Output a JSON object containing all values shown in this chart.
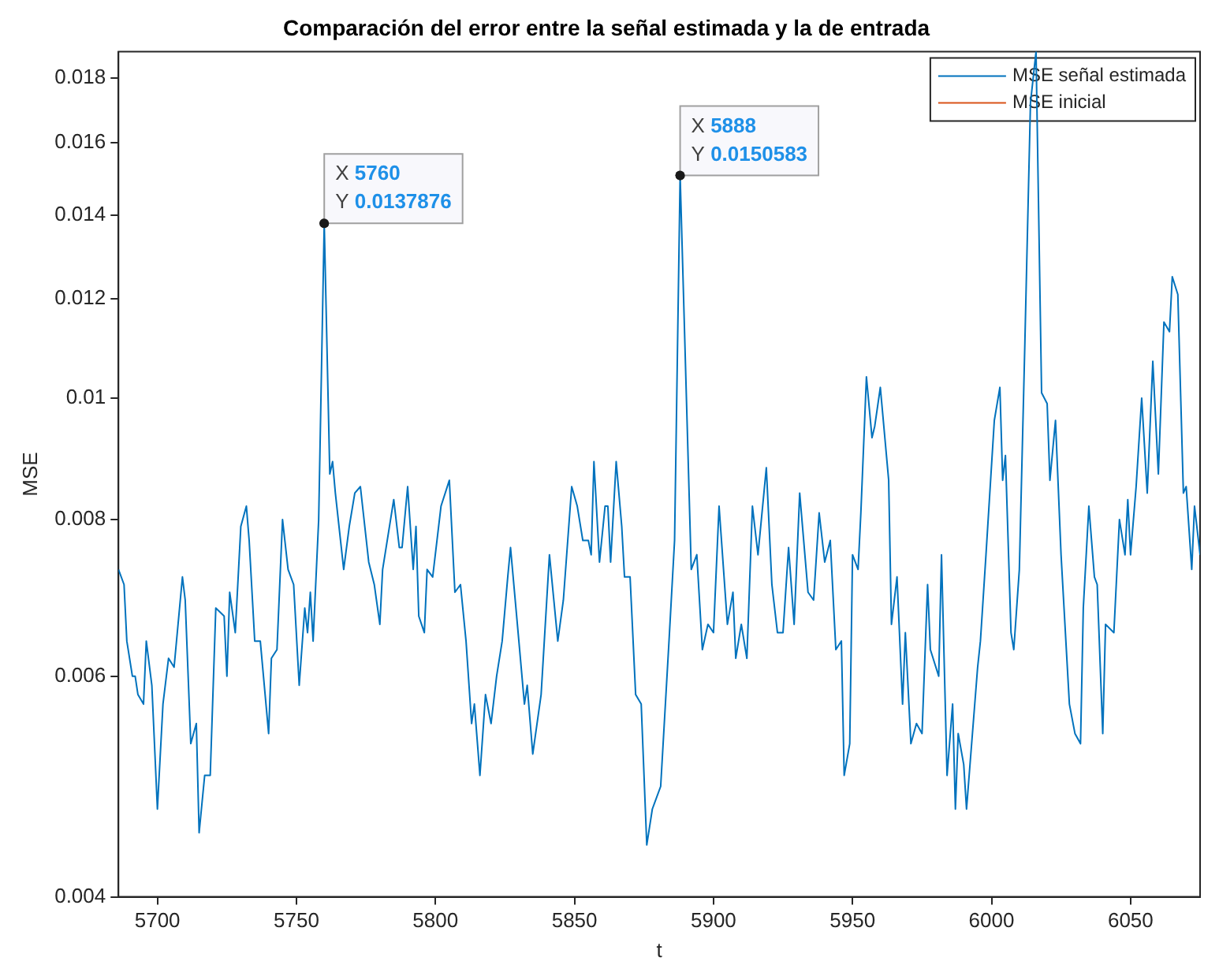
{
  "chart_data": {
    "type": "line",
    "title": "Comparación del error entre la señal estimada y la de entrada",
    "xlabel": "t",
    "ylabel": "MSE",
    "log": "y",
    "xlim": [
      5686,
      6075
    ],
    "xticks": [
      5700,
      5750,
      5800,
      5850,
      5900,
      5950,
      6000,
      6050
    ],
    "ylim": [
      0.004,
      0.0189
    ],
    "yticks": [
      0.004,
      0.006,
      0.008,
      0.01,
      0.012,
      0.014,
      0.016,
      0.018
    ],
    "legend": "top right",
    "marker": "none",
    "series": [
      {
        "name": "MSE señal estimada",
        "color": "#0072bd",
        "x": [
          5686,
          5688,
          5689,
          5691,
          5692,
          5693,
          5695,
          5696,
          5698,
          5700,
          5702,
          5704,
          5706,
          5709,
          5710,
          5712,
          5714,
          5715,
          5717,
          5719,
          5721,
          5724,
          5725,
          5726,
          5728,
          5730,
          5732,
          5733,
          5735,
          5737,
          5740,
          5741,
          5743,
          5745,
          5747,
          5749,
          5751,
          5753,
          5754,
          5755,
          5756,
          5758,
          5760,
          5762,
          5763,
          5764,
          5767,
          5769,
          5771,
          5773,
          5776,
          5778,
          5780,
          5781,
          5785,
          5787,
          5788,
          5790,
          5792,
          5793,
          5794,
          5796,
          5797,
          5799,
          5802,
          5805,
          5807,
          5809,
          5811,
          5813,
          5814,
          5816,
          5818,
          5820,
          5822,
          5824,
          5826,
          5827,
          5830,
          5832,
          5833,
          5835,
          5838,
          5841,
          5844,
          5846,
          5849,
          5851,
          5853,
          5855,
          5856,
          5857,
          5859,
          5861,
          5862,
          5863,
          5865,
          5867,
          5868,
          5870,
          5872,
          5874,
          5876,
          5878,
          5881,
          5884,
          5886,
          5888,
          5892,
          5894,
          5896,
          5898,
          5900,
          5902,
          5905,
          5907,
          5908,
          5910,
          5912,
          5914,
          5916,
          5919,
          5921,
          5923,
          5925,
          5927,
          5929,
          5931,
          5934,
          5936,
          5938,
          5940,
          5942,
          5944,
          5946,
          5947,
          5949,
          5950,
          5952,
          5953,
          5955,
          5957,
          5958,
          5960,
          5963,
          5964,
          5966,
          5968,
          5969,
          5971,
          5973,
          5975,
          5977,
          5978,
          5981,
          5982,
          5984,
          5986,
          5987,
          5988,
          5990,
          5991,
          5995,
          5996,
          5998,
          6001,
          6003,
          6004,
          6005,
          6007,
          6008,
          6010,
          6012,
          6014,
          6016,
          6018,
          6020,
          6021,
          6023,
          6025,
          6028,
          6030,
          6032,
          6033,
          6035,
          6037,
          6038,
          6040,
          6041,
          6044,
          6046,
          6048,
          6049,
          6050,
          6052,
          6054,
          6056,
          6058,
          6060,
          6062,
          6064,
          6065,
          6067,
          6069,
          6070,
          6072,
          6073,
          6075
        ],
        "values": [
          0.0073,
          0.0071,
          0.0064,
          0.006,
          0.006,
          0.0058,
          0.0057,
          0.0064,
          0.0059,
          0.0047,
          0.0057,
          0.0062,
          0.0061,
          0.0072,
          0.0069,
          0.0053,
          0.0055,
          0.0045,
          0.005,
          0.005,
          0.0068,
          0.0067,
          0.006,
          0.007,
          0.0065,
          0.0079,
          0.0082,
          0.0077,
          0.0064,
          0.0064,
          0.0054,
          0.0062,
          0.0063,
          0.008,
          0.0073,
          0.0071,
          0.0059,
          0.0068,
          0.0065,
          0.007,
          0.0064,
          0.008,
          0.0137876,
          0.0087,
          0.0089,
          0.0084,
          0.0073,
          0.0079,
          0.0084,
          0.0085,
          0.0074,
          0.0071,
          0.0066,
          0.0073,
          0.0083,
          0.0076,
          0.0076,
          0.0085,
          0.0073,
          0.0079,
          0.0067,
          0.0065,
          0.0073,
          0.0072,
          0.0082,
          0.0086,
          0.007,
          0.0071,
          0.0064,
          0.0055,
          0.0057,
          0.005,
          0.0058,
          0.0055,
          0.006,
          0.0064,
          0.0072,
          0.0076,
          0.0064,
          0.0057,
          0.0059,
          0.0052,
          0.0058,
          0.0075,
          0.0064,
          0.0069,
          0.0085,
          0.0082,
          0.0077,
          0.0077,
          0.0075,
          0.0089,
          0.0074,
          0.0082,
          0.0082,
          0.0074,
          0.0089,
          0.0079,
          0.0072,
          0.0072,
          0.0058,
          0.0057,
          0.0044,
          0.0047,
          0.0049,
          0.0064,
          0.0077,
          0.0150583,
          0.0073,
          0.0075,
          0.0063,
          0.0066,
          0.0065,
          0.0082,
          0.0066,
          0.007,
          0.0062,
          0.0066,
          0.0062,
          0.0082,
          0.0075,
          0.0088,
          0.0071,
          0.0065,
          0.0065,
          0.0076,
          0.0066,
          0.0084,
          0.007,
          0.0069,
          0.0081,
          0.0074,
          0.0077,
          0.0063,
          0.0064,
          0.005,
          0.0053,
          0.0075,
          0.0073,
          0.0081,
          0.0104,
          0.0093,
          0.0095,
          0.0102,
          0.0086,
          0.0066,
          0.0072,
          0.0057,
          0.0065,
          0.0053,
          0.0055,
          0.0054,
          0.0071,
          0.0063,
          0.006,
          0.0075,
          0.005,
          0.0057,
          0.0047,
          0.0054,
          0.0051,
          0.0047,
          0.0061,
          0.0064,
          0.0075,
          0.0096,
          0.0102,
          0.0086,
          0.009,
          0.0065,
          0.0063,
          0.0073,
          0.0111,
          0.0172,
          0.0189,
          0.0101,
          0.0099,
          0.0086,
          0.0096,
          0.0075,
          0.0057,
          0.0054,
          0.0053,
          0.0068,
          0.0082,
          0.0072,
          0.0071,
          0.0054,
          0.0066,
          0.0065,
          0.008,
          0.0075,
          0.0083,
          0.0075,
          0.0085,
          0.01,
          0.0084,
          0.0107,
          0.0087,
          0.0115,
          0.0113,
          0.0125,
          0.0121,
          0.0084,
          0.0085,
          0.0073,
          0.0082,
          0.0075
        ]
      },
      {
        "name": "MSE inicial",
        "color": "#d95319"
      }
    ],
    "annotations": [
      {
        "text": "X 5760\nY 0.0137876",
        "x": 5760,
        "y": 0.0137876
      },
      {
        "text": "X 5888\nY 0.0150583",
        "x": 5888,
        "y": 0.0150583
      }
    ]
  }
}
